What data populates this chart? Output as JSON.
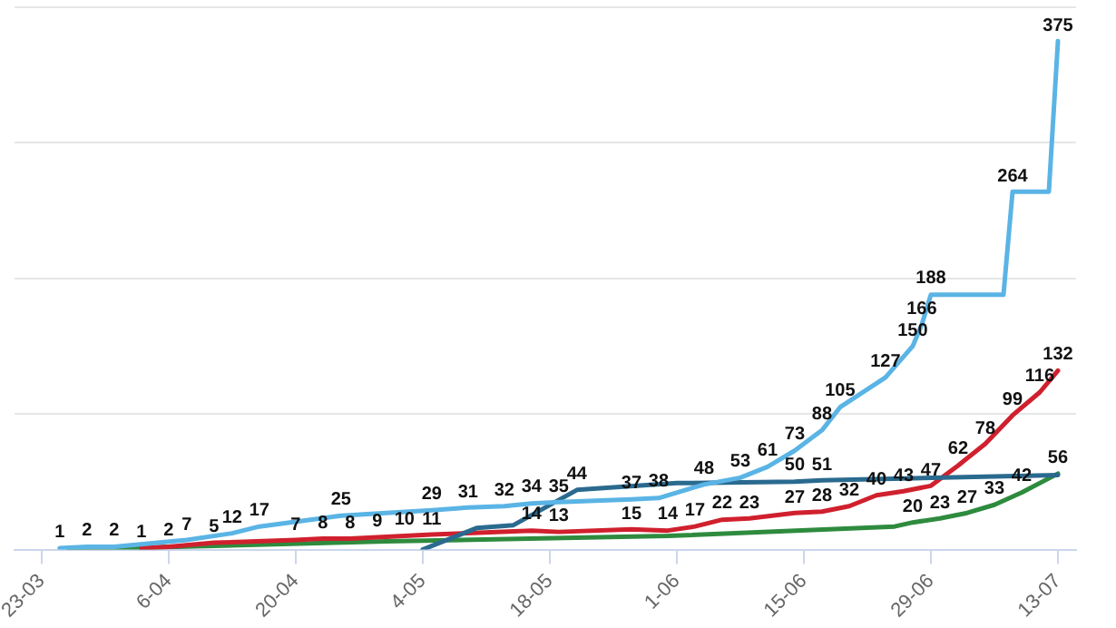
{
  "chart_data": {
    "type": "line",
    "xlim": [
      "--03-20",
      "--07-15"
    ],
    "xticks": [
      {
        "value": "--03-23",
        "label": "23-03"
      },
      {
        "value": "--04-06",
        "label": "6-04"
      },
      {
        "value": "--04-20",
        "label": "20-04"
      },
      {
        "value": "--05-04",
        "label": "4-05"
      },
      {
        "value": "--05-18",
        "label": "18-05"
      },
      {
        "value": "--06-01",
        "label": "1-06"
      },
      {
        "value": "--06-15",
        "label": "15-06"
      },
      {
        "value": "--06-29",
        "label": "29-06"
      },
      {
        "value": "--07-13",
        "label": "13-07"
      }
    ],
    "ylim": [
      0,
      400
    ],
    "yticks": [
      {
        "value": 0,
        "label": null
      },
      {
        "value": 100,
        "label": null
      },
      {
        "value": 200,
        "label": null
      },
      {
        "value": 300,
        "label": null
      },
      {
        "value": 400,
        "label": null
      }
    ],
    "tick_labels": "x",
    "grid": "y",
    "legend": false,
    "marker": "none",
    "line_style": "solid",
    "series": [
      {
        "color": "#5ab4e5",
        "x": [
          "--03-25",
          "--03-28",
          "--03-31",
          "--04-08",
          "--04-13",
          "--04-16",
          "--04-25",
          "--05-05",
          "--05-09",
          "--05-13",
          "--05-16",
          "--05-19",
          "--05-27",
          "--05-30",
          "--06-04",
          "--06-08",
          "--06-11",
          "--06-14",
          "--06-17",
          "--06-19",
          "--06-24",
          "--06-27",
          "--06-28",
          "--06-29",
          "--07-07",
          "--07-08",
          "--07-12",
          "--07-13"
        ],
        "values": [
          1,
          2,
          2,
          7,
          12,
          17,
          25,
          29,
          31,
          32,
          34,
          35,
          37,
          38,
          48,
          53,
          61,
          73,
          88,
          105,
          127,
          150,
          166,
          188,
          188,
          264,
          264,
          375
        ],
        "value_labels": [
          "1",
          "2",
          "2",
          "7",
          "12",
          "17",
          "25",
          "29",
          "31",
          "32",
          "34",
          "35",
          "37",
          "38",
          "48",
          "53",
          "61",
          "73",
          "88",
          "105",
          "127",
          "150",
          "166",
          "188",
          null,
          "264",
          null,
          "375"
        ]
      },
      {
        "color": "#2a6a8f",
        "x": [
          "--05-04",
          "--05-10",
          "--05-14",
          "--05-21",
          "--06-01",
          "--06-14",
          "--06-17",
          "--07-13"
        ],
        "values": [
          0,
          16,
          18,
          44,
          49,
          50,
          51,
          55
        ],
        "value_labels": [
          null,
          null,
          null,
          "44",
          null,
          "50",
          "51",
          null
        ]
      },
      {
        "color": "#d0202e",
        "x": [
          "--04-03",
          "--04-06",
          "--04-11",
          "--04-20",
          "--04-23",
          "--04-26",
          "--04-29",
          "--05-02",
          "--05-05",
          "--05-16",
          "--05-19",
          "--05-27",
          "--05-31",
          "--06-03",
          "--06-06",
          "--06-09",
          "--06-14",
          "--06-17",
          "--06-20",
          "--06-23",
          "--06-26",
          "--06-29",
          "--07-02",
          "--07-05",
          "--07-08",
          "--07-11",
          "--07-13"
        ],
        "values": [
          1,
          2,
          5,
          7,
          8,
          8,
          9,
          10,
          11,
          14,
          13,
          15,
          14,
          17,
          22,
          23,
          27,
          28,
          32,
          40,
          43,
          47,
          62,
          78,
          99,
          116,
          132
        ],
        "value_labels": [
          "1",
          "2",
          "5",
          "7",
          "8",
          "8",
          "9",
          "10",
          "11",
          "14",
          "13",
          "15",
          "14",
          "17",
          "22",
          "23",
          "27",
          "28",
          "32",
          "40",
          "43",
          "47",
          "62",
          "78",
          "99",
          "116",
          "132"
        ]
      },
      {
        "color": "#2e8b3e",
        "x": [
          "--03-26",
          "--04-30",
          "--05-31",
          "--06-25",
          "--06-27",
          "--06-30",
          "--07-03",
          "--07-06",
          "--07-09",
          "--07-13"
        ],
        "values": [
          0,
          6,
          10,
          17,
          20,
          23,
          27,
          33,
          42,
          56
        ],
        "value_labels": [
          null,
          null,
          null,
          null,
          "20",
          "23",
          "27",
          "33",
          "42",
          "56"
        ]
      }
    ]
  }
}
